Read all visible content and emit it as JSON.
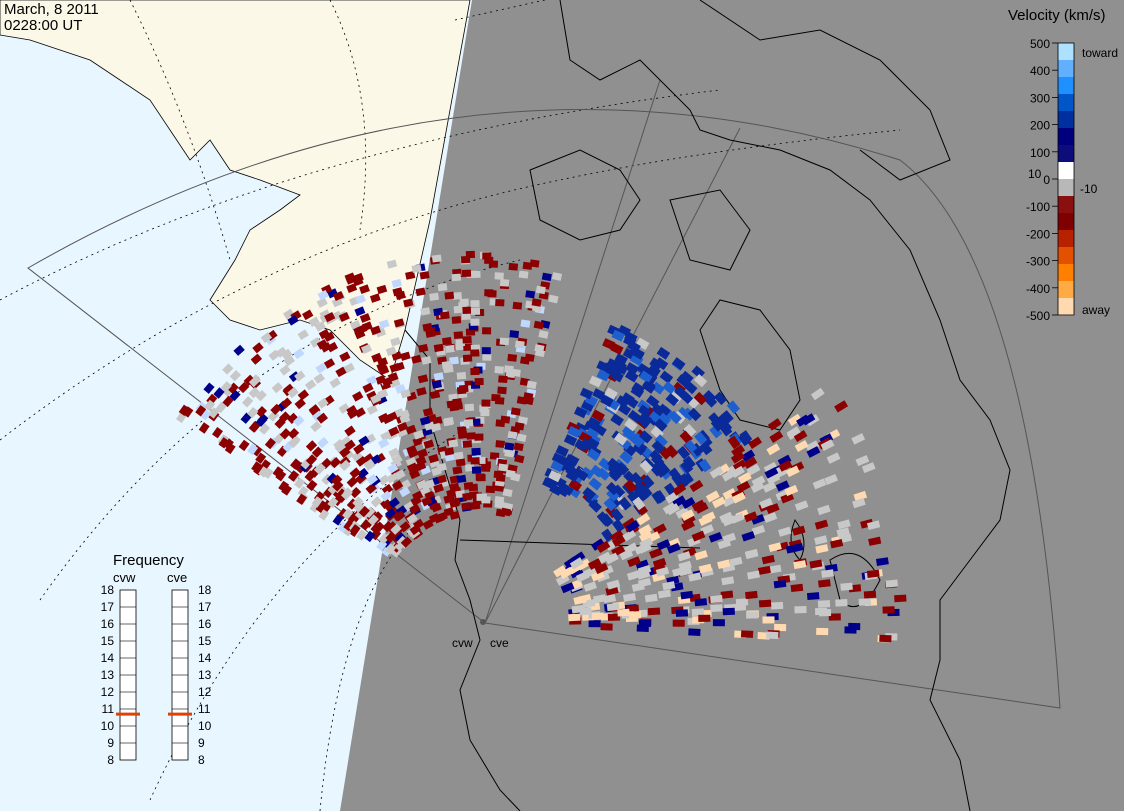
{
  "header": {
    "date": "March, 8 2011",
    "time": "0228:00 UT"
  },
  "colorbar": {
    "title": "Velocity (km/s)",
    "ticks": [
      "500",
      "400",
      "300",
      "200",
      "100",
      "0",
      "-100",
      "-200",
      "-300",
      "-400",
      "-500"
    ],
    "extra_ticks": [
      "10",
      "-10"
    ],
    "toward_label": "toward",
    "away_label": "away",
    "colors": [
      "#ffd9b0",
      "#ffaa44",
      "#ff7f00",
      "#e35000",
      "#b82100",
      "#7f0000",
      "#8a0f0f",
      "#b8b8b8",
      "#ffffff",
      "#0c0c7a",
      "#00007f",
      "#0030a0",
      "#0055c8",
      "#1e90ff",
      "#60b0ff",
      "#aee0ff"
    ]
  },
  "frequency": {
    "title": "Frequency",
    "radars": [
      "cvw",
      "cve"
    ],
    "scale": [
      "18",
      "17",
      "16",
      "15",
      "14",
      "13",
      "12",
      "11",
      "10",
      "9",
      "8"
    ],
    "cvw_value": 10.7,
    "cve_value": 10.7
  },
  "map": {
    "radar_labels": [
      "cvw",
      "cve"
    ],
    "colors": {
      "ocean": "#e8f6ff",
      "land_daylight": "#fbf8e8",
      "night": "#909090",
      "ground_scatter": "#c8c8c8",
      "away": "#8b0000",
      "toward": "#00008b"
    }
  }
}
